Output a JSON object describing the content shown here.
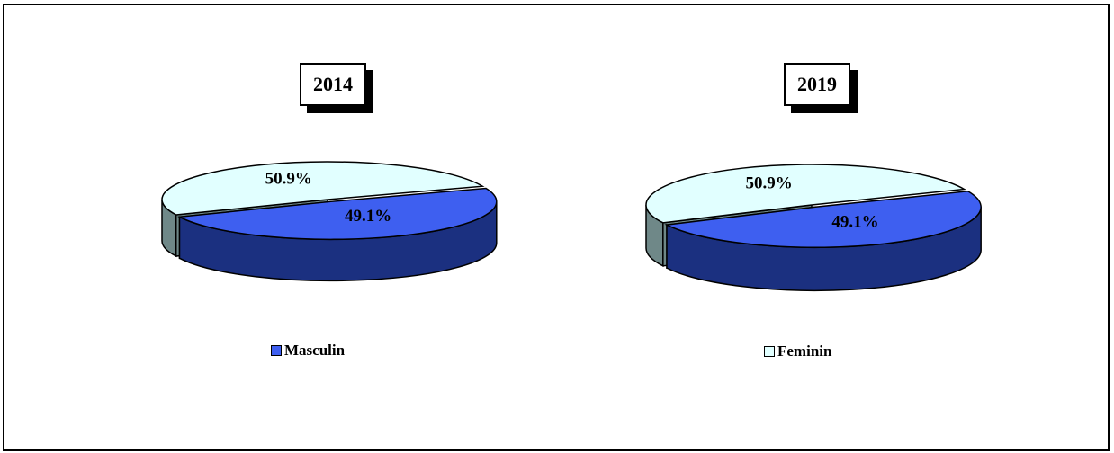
{
  "colors": {
    "masculin_top": "#3e5ff0",
    "masculin_side": "#1b3080",
    "feminin_top": "#e1ffff",
    "feminin_side": "#6f8888"
  },
  "chart_data": [
    {
      "type": "pie",
      "title": "2014",
      "slices": [
        {
          "label": "Masculin",
          "value": 49.1,
          "data_label": "49.1%"
        },
        {
          "label": "Feminin",
          "value": 50.9,
          "data_label": "50.9%"
        }
      ]
    },
    {
      "type": "pie",
      "title": "2019",
      "slices": [
        {
          "label": "Masculin",
          "value": 49.1,
          "data_label": "49.1%"
        },
        {
          "label": "Feminin",
          "value": 50.9,
          "data_label": "50.9%"
        }
      ]
    }
  ],
  "legend": [
    {
      "label": "Masculin",
      "icon": "square-swatch"
    },
    {
      "label": "Feminin",
      "icon": "square-swatch"
    }
  ]
}
